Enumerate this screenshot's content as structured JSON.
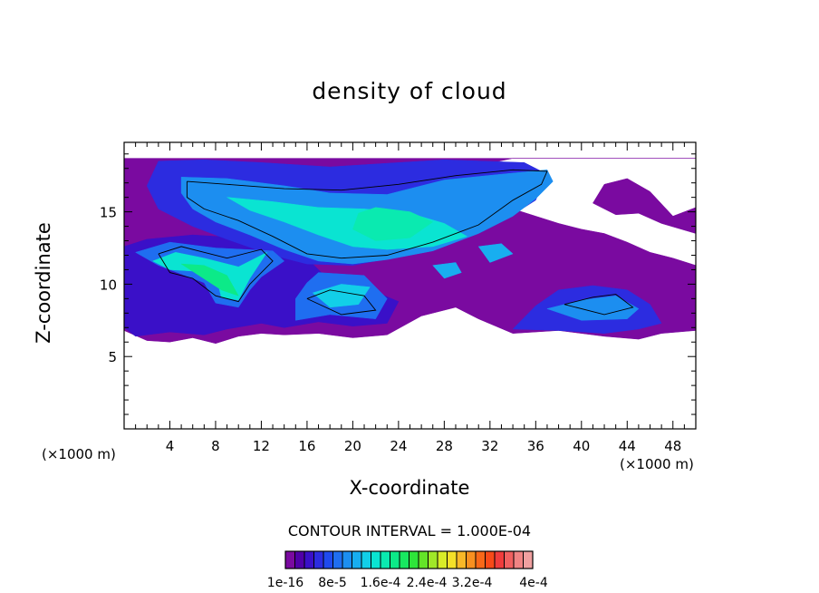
{
  "chart_data": {
    "type": "heatmap",
    "title": "density of cloud",
    "xlabel": "X-coordinate",
    "ylabel": "Z-coordinate",
    "x_unit_left": "(×1000 m)",
    "x_unit_right": "(×1000 m)",
    "xlim": [
      0,
      50
    ],
    "ylim": [
      0,
      19.8
    ],
    "x_ticks": [
      "4",
      "8",
      "12",
      "16",
      "20",
      "24",
      "28",
      "32",
      "36",
      "40",
      "44",
      "48"
    ],
    "y_ticks": [
      "5",
      "10",
      "15"
    ],
    "contour_interval": "CONTOUR INTERVAL = 1.000E-04",
    "colorbar": {
      "labels": [
        "1e-16",
        "8e-5",
        "1.6e-4",
        "2.4e-4",
        "3.2e-4",
        "4e-4"
      ],
      "colors": [
        "#7a0aa0",
        "#5000a8",
        "#3a10c8",
        "#2c2ce0",
        "#1f4aee",
        "#1f6ef0",
        "#1c8ef0",
        "#18aef0",
        "#12cfe8",
        "#0ae4d2",
        "#0aeab0",
        "#0cea88",
        "#18e860",
        "#2ee43a",
        "#64e428",
        "#a0e828",
        "#d8ec28",
        "#f4e028",
        "#f8b828",
        "#f89020",
        "#f86818",
        "#f84a18",
        "#f03c3c",
        "#f06060",
        "#f08484",
        "#f0a0a0"
      ]
    },
    "regions": [
      {
        "level": 0,
        "polygon": [
          [
            0,
            6.8
          ],
          [
            2,
            6.1
          ],
          [
            4,
            6.0
          ],
          [
            6,
            6.3
          ],
          [
            8,
            5.9
          ],
          [
            10,
            6.4
          ],
          [
            12,
            6.6
          ],
          [
            14,
            6.5
          ],
          [
            17,
            6.6
          ],
          [
            20,
            6.3
          ],
          [
            23,
            6.5
          ],
          [
            26,
            7.8
          ],
          [
            29,
            8.4
          ],
          [
            31,
            7.6
          ],
          [
            34,
            6.6
          ],
          [
            38,
            6.8
          ],
          [
            42,
            6.4
          ],
          [
            45,
            6.2
          ],
          [
            47,
            6.6
          ],
          [
            50,
            6.8
          ],
          [
            50,
            11.3
          ],
          [
            48,
            11.8
          ],
          [
            46,
            12.2
          ],
          [
            44,
            12.9
          ],
          [
            42,
            13.5
          ],
          [
            40,
            13.8
          ],
          [
            38,
            14.2
          ],
          [
            36,
            14.7
          ],
          [
            34,
            15.2
          ],
          [
            32,
            15.8
          ],
          [
            30,
            16.6
          ],
          [
            29,
            17.4
          ],
          [
            31,
            18.2
          ],
          [
            34,
            18.7
          ],
          [
            50,
            18.7
          ],
          [
            50,
            15.3
          ],
          [
            48,
            14.7
          ],
          [
            46,
            16.4
          ],
          [
            44,
            17.3
          ],
          [
            42,
            16.9
          ],
          [
            41,
            15.6
          ],
          [
            43,
            14.8
          ],
          [
            45,
            14.9
          ],
          [
            47,
            14.2
          ],
          [
            50,
            13.5
          ],
          [
            50,
            18.7
          ],
          [
            0,
            18.7
          ]
        ]
      },
      {
        "level": 2,
        "polygon": [
          [
            0,
            7.0
          ],
          [
            1,
            6.4
          ],
          [
            4,
            6.7
          ],
          [
            7,
            6.5
          ],
          [
            9,
            6.9
          ],
          [
            12,
            7.3
          ],
          [
            14,
            7.0
          ],
          [
            17,
            7.4
          ],
          [
            20,
            7.1
          ],
          [
            23,
            7.3
          ],
          [
            24,
            8.8
          ],
          [
            21,
            9.8
          ],
          [
            18,
            10.2
          ],
          [
            16,
            11.8
          ],
          [
            14,
            12.5
          ],
          [
            12,
            13.0
          ],
          [
            10,
            13.2
          ],
          [
            6,
            13.4
          ],
          [
            2,
            13.1
          ],
          [
            0,
            12.6
          ]
        ]
      },
      {
        "level": 3,
        "polygon": [
          [
            3,
            18.5
          ],
          [
            7,
            18.6
          ],
          [
            12,
            18.4
          ],
          [
            18,
            18.1
          ],
          [
            22,
            18.3
          ],
          [
            28,
            18.6
          ],
          [
            35,
            18.4
          ],
          [
            37,
            17.6
          ],
          [
            36,
            15.8
          ],
          [
            34,
            14.8
          ],
          [
            31,
            13.7
          ],
          [
            28,
            12.6
          ],
          [
            24,
            11.9
          ],
          [
            20,
            11.3
          ],
          [
            16,
            11.4
          ],
          [
            13,
            12.0
          ],
          [
            9,
            13.1
          ],
          [
            6,
            14.0
          ],
          [
            3,
            15.2
          ],
          [
            2,
            16.8
          ]
        ]
      },
      {
        "level": 6,
        "polygon": [
          [
            5,
            17.4
          ],
          [
            9,
            17.3
          ],
          [
            14,
            16.8
          ],
          [
            18,
            16.3
          ],
          [
            23,
            16.2
          ],
          [
            28,
            17.2
          ],
          [
            33,
            17.6
          ],
          [
            37,
            17.9
          ],
          [
            37.5,
            17.1
          ],
          [
            36,
            15.9
          ],
          [
            34,
            14.7
          ],
          [
            31,
            13.5
          ],
          [
            27,
            12.3
          ],
          [
            23,
            11.7
          ],
          [
            20,
            11.4
          ],
          [
            17,
            11.6
          ],
          [
            14,
            12.4
          ],
          [
            11,
            13.4
          ],
          [
            8,
            14.3
          ],
          [
            6,
            15.2
          ],
          [
            5,
            16.3
          ]
        ]
      },
      {
        "level": 9,
        "polygon": [
          [
            9,
            16.0
          ],
          [
            13,
            15.7
          ],
          [
            17,
            15.3
          ],
          [
            21,
            15.2
          ],
          [
            25,
            14.9
          ],
          [
            28,
            14.2
          ],
          [
            30,
            13.3
          ],
          [
            27,
            12.6
          ],
          [
            23,
            12.4
          ],
          [
            20,
            12.6
          ],
          [
            17,
            13.4
          ],
          [
            14,
            14.3
          ],
          [
            11,
            15.1
          ]
        ]
      },
      {
        "level": 10,
        "polygon": [
          [
            22,
            15.3
          ],
          [
            25,
            15.0
          ],
          [
            27,
            14.3
          ],
          [
            25,
            13.2
          ],
          [
            22,
            13.0
          ],
          [
            20,
            13.8
          ],
          [
            20.5,
            14.9
          ]
        ]
      },
      {
        "level": 5,
        "polygon": [
          [
            1,
            12.2
          ],
          [
            4,
            12.9
          ],
          [
            8,
            12.5
          ],
          [
            13,
            12.3
          ],
          [
            14,
            11.6
          ],
          [
            12,
            10.5
          ],
          [
            11,
            9.6
          ],
          [
            10,
            8.4
          ],
          [
            8,
            8.7
          ],
          [
            7,
            10.1
          ],
          [
            5,
            10.7
          ],
          [
            3,
            11.3
          ]
        ]
      },
      {
        "level": 9,
        "polygon": [
          [
            2.5,
            11.6
          ],
          [
            4.5,
            12.2
          ],
          [
            7,
            11.8
          ],
          [
            10,
            11.2
          ],
          [
            12.5,
            12.2
          ],
          [
            11,
            10.4
          ],
          [
            10,
            8.9
          ],
          [
            8.5,
            9.1
          ],
          [
            8,
            10.7
          ],
          [
            6,
            10.9
          ],
          [
            4,
            11.0
          ]
        ]
      },
      {
        "level": 11,
        "polygon": [
          [
            5,
            11.4
          ],
          [
            7,
            11.3
          ],
          [
            9,
            10.6
          ],
          [
            10,
            9.2
          ],
          [
            8.5,
            9.6
          ]
        ]
      },
      {
        "level": 5,
        "polygon": [
          [
            15,
            7.5
          ],
          [
            18,
            7.9
          ],
          [
            22,
            7.6
          ],
          [
            23,
            9.0
          ],
          [
            21,
            10.6
          ],
          [
            17,
            10.8
          ],
          [
            16,
            10.1
          ],
          [
            15,
            9.0
          ]
        ]
      },
      {
        "level": 8,
        "polygon": [
          [
            16.5,
            9.4
          ],
          [
            19,
            10.0
          ],
          [
            21.5,
            9.8
          ],
          [
            20.5,
            8.6
          ],
          [
            18,
            8.4
          ]
        ]
      },
      {
        "level": 3,
        "polygon": [
          [
            34,
            6.9
          ],
          [
            38,
            6.8
          ],
          [
            42,
            6.6
          ],
          [
            45,
            6.9
          ],
          [
            47,
            7.3
          ],
          [
            46,
            8.6
          ],
          [
            44,
            9.6
          ],
          [
            41,
            9.9
          ],
          [
            38,
            9.6
          ],
          [
            36,
            8.5
          ]
        ]
      },
      {
        "level": 6,
        "polygon": [
          [
            37,
            8.3
          ],
          [
            40,
            8.9
          ],
          [
            43,
            9.2
          ],
          [
            45,
            8.3
          ],
          [
            44,
            7.6
          ],
          [
            40,
            7.5
          ]
        ]
      },
      {
        "level": 7,
        "polygon": [
          [
            31,
            12.6
          ],
          [
            33,
            12.8
          ],
          [
            34,
            12.1
          ],
          [
            32,
            11.5
          ]
        ]
      },
      {
        "level": 7,
        "polygon": [
          [
            27,
            11.3
          ],
          [
            29,
            11.5
          ],
          [
            29.5,
            10.8
          ],
          [
            28,
            10.4
          ]
        ]
      }
    ],
    "contour_lines": [
      [
        [
          5.5,
          17.1
        ],
        [
          9,
          16.9
        ],
        [
          14,
          16.6
        ],
        [
          19,
          16.5
        ],
        [
          24,
          16.9
        ],
        [
          29,
          17.5
        ],
        [
          34,
          17.9
        ],
        [
          37,
          17.8
        ],
        [
          36.5,
          16.9
        ],
        [
          34,
          15.8
        ],
        [
          31,
          14.1
        ],
        [
          27,
          12.9
        ],
        [
          23,
          12.0
        ],
        [
          19,
          11.8
        ],
        [
          16,
          12.1
        ],
        [
          13,
          13.3
        ],
        [
          10,
          14.4
        ],
        [
          7,
          15.2
        ],
        [
          5.5,
          16.0
        ],
        [
          5.5,
          17.1
        ]
      ],
      [
        [
          3,
          12.1
        ],
        [
          5,
          12.6
        ],
        [
          7,
          12.2
        ],
        [
          9,
          11.8
        ],
        [
          12,
          12.4
        ],
        [
          13,
          11.6
        ],
        [
          11,
          10.0
        ],
        [
          10,
          8.8
        ],
        [
          8,
          9.2
        ],
        [
          6,
          10.4
        ],
        [
          4,
          10.8
        ],
        [
          3,
          12.1
        ]
      ],
      [
        [
          16,
          9.0
        ],
        [
          18,
          9.6
        ],
        [
          21,
          9.2
        ],
        [
          22,
          8.2
        ],
        [
          19,
          7.9
        ],
        [
          16,
          9.0
        ]
      ],
      [
        [
          38.5,
          8.6
        ],
        [
          41,
          9.1
        ],
        [
          43,
          9.3
        ],
        [
          44.5,
          8.4
        ],
        [
          42,
          7.9
        ],
        [
          38.5,
          8.6
        ]
      ]
    ]
  }
}
